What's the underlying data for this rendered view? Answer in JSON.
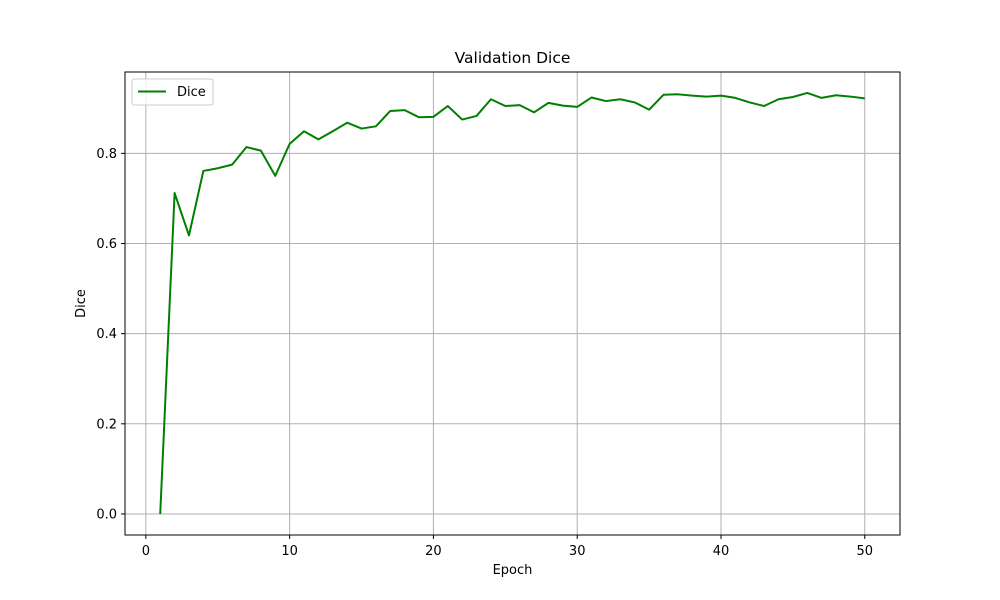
{
  "chart_data": {
    "type": "line",
    "title": "Validation Dice",
    "xlabel": "Epoch",
    "ylabel": "Dice",
    "xlim": [
      -1.45,
      52.45
    ],
    "ylim": [
      -0.0467,
      0.9805
    ],
    "xticks": [
      0,
      10,
      20,
      30,
      40,
      50
    ],
    "xtick_labels": [
      "0",
      "10",
      "20",
      "30",
      "40",
      "50"
    ],
    "yticks": [
      0.0,
      0.2,
      0.4,
      0.6,
      0.8
    ],
    "ytick_labels": [
      "0.0",
      "0.2",
      "0.4",
      "0.6",
      "0.8"
    ],
    "grid": true,
    "legend": {
      "placement": "top-left",
      "entries": [
        "Dice"
      ]
    },
    "series": [
      {
        "name": "Dice",
        "color": "#008000",
        "x": [
          1,
          2,
          3,
          4,
          5,
          6,
          7,
          8,
          9,
          10,
          11,
          12,
          13,
          14,
          15,
          16,
          17,
          18,
          19,
          20,
          21,
          22,
          23,
          24,
          25,
          26,
          27,
          28,
          29,
          30,
          31,
          32,
          33,
          34,
          35,
          36,
          37,
          38,
          39,
          40,
          41,
          42,
          43,
          44,
          45,
          46,
          47,
          48,
          49,
          50
        ],
        "values": [
          0.0,
          0.712,
          0.618,
          0.761,
          0.767,
          0.775,
          0.814,
          0.806,
          0.75,
          0.821,
          0.849,
          0.831,
          0.849,
          0.868,
          0.855,
          0.86,
          0.894,
          0.896,
          0.88,
          0.881,
          0.905,
          0.875,
          0.883,
          0.92,
          0.905,
          0.907,
          0.891,
          0.912,
          0.906,
          0.903,
          0.924,
          0.916,
          0.92,
          0.913,
          0.897,
          0.93,
          0.931,
          0.928,
          0.926,
          0.928,
          0.923,
          0.913,
          0.905,
          0.92,
          0.925,
          0.934,
          0.923,
          0.929,
          0.926,
          0.922
        ]
      }
    ]
  }
}
